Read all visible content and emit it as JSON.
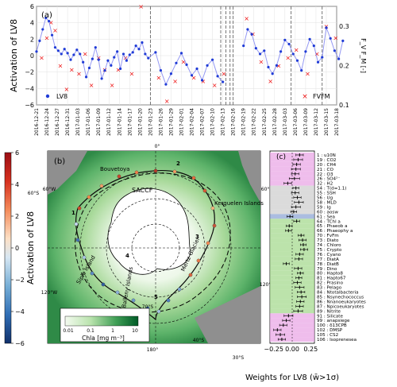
{
  "chart_data": [
    {
      "panel": "(a)",
      "type": "line",
      "ylabel": "Activation of LV8",
      "ylabel_right": "F_V F_M [-]",
      "ylim": [
        -6,
        6
      ],
      "yticks": [
        "6",
        "4",
        "2",
        "0",
        "−2",
        "−4",
        "−6"
      ],
      "ylim_right": [
        0.1,
        0.35
      ],
      "yticks_right": [
        "0.3",
        "0.2",
        "0.1"
      ],
      "legend_left": "LV8",
      "legend_right": "FVFM",
      "xticks": [
        "2016-12-21",
        "2016-12-24",
        "2016-12-27",
        "2016-12-31",
        "2017-01-03",
        "2017-01-06",
        "2017-01-09",
        "2017-01-12",
        "2017-01-14",
        "2017-01-17",
        "2017-01-20",
        "2017-01-23",
        "2017-01-26",
        "2017-01-29",
        "2017-02-01",
        "2017-02-04",
        "2017-02-07",
        "2017-02-10",
        "2017-02-13",
        "2017-02-16",
        "2017-02-19",
        "2017-02-22",
        "2017-02-25",
        "2017-02-28",
        "2017-03-03",
        "2017-03-06",
        "2017-03-09",
        "2017-03-12",
        "2017-03-15",
        "2017-03-18"
      ],
      "lv8_x": [
        0,
        0.3,
        0.6,
        0.9,
        1.2,
        1.5,
        1.8,
        2.1,
        2.4,
        2.7,
        3,
        3.3,
        3.6,
        3.9,
        4.2,
        4.5,
        4.8,
        5.1,
        5.4,
        5.7,
        6,
        6.3,
        6.6,
        6.9,
        7.2,
        7.5,
        7.8,
        8.1,
        8.4,
        8.7,
        9,
        9.3,
        9.6,
        9.9,
        10.2,
        10.5,
        10.8,
        11.5,
        12,
        12.5,
        13,
        13.5,
        14,
        14.5,
        15,
        15.5,
        16,
        16.5,
        17,
        17.5,
        18,
        20,
        20.4,
        20.8,
        21.2,
        21.6,
        22,
        22.4,
        22.8,
        23.2,
        23.6,
        24,
        24.4,
        24.8,
        25.2,
        25.6,
        26,
        26.4,
        26.8,
        27.2,
        27.6,
        28,
        28.4,
        28.8,
        29.2,
        29.6
      ],
      "lv8_y": [
        0.5,
        1.8,
        3.2,
        4.6,
        4.2,
        2.5,
        1.0,
        0.6,
        0.2,
        0.8,
        0.3,
        -0.5,
        0.1,
        0.7,
        0.2,
        -0.8,
        -2.6,
        -1.5,
        -0.4,
        1.0,
        -0.5,
        -2.8,
        -1.8,
        -0.6,
        -1.2,
        -0.2,
        0.5,
        -1.6,
        0.2,
        -0.6,
        0.1,
        0.4,
        1.2,
        0.8,
        1.6,
        0.2,
        -0.3,
        0.4,
        -1.8,
        -3.5,
        -2.2,
        -0.9,
        0.3,
        -1.1,
        -2.4,
        -1.6,
        -3.0,
        -1.2,
        -0.5,
        -2.5,
        -3.2,
        1.2,
        3.2,
        2.6,
        0.9,
        0.2,
        0.6,
        -1.4,
        -2.2,
        -1.2,
        0.5,
        1.9,
        1.4,
        0.2,
        -0.6,
        -1.8,
        0.5,
        2.0,
        1.2,
        -0.8,
        -0.2,
        3.4,
        2.1,
        0.6,
        -0.4,
        1.8
      ],
      "fvfm_x": [
        0.5,
        1.0,
        1.4,
        1.8,
        2.3,
        2.9,
        3.4,
        4.1,
        4.7,
        5.3,
        6.0,
        6.6,
        7.3,
        7.9,
        8.6,
        9.2,
        10.1,
        11.8,
        12.6,
        13.4,
        14.2,
        15.2,
        16.1,
        17.2,
        18.1,
        20.3,
        20.9,
        21.7,
        22.6,
        23.4,
        24.3,
        25.1,
        26.2,
        27.1,
        28.0,
        28.9
      ],
      "fvfm_y": [
        0.22,
        0.27,
        0.31,
        0.29,
        0.2,
        0.14,
        0.19,
        0.18,
        0.23,
        0.15,
        0.22,
        0.19,
        0.15,
        0.19,
        0.22,
        0.18,
        0.35,
        0.17,
        0.11,
        0.16,
        0.21,
        0.17,
        0.16,
        0.15,
        0.18,
        0.32,
        0.28,
        0.21,
        0.16,
        0.2,
        0.22,
        0.24,
        0.18,
        0.23,
        0.3,
        0.27
      ],
      "vlines_x": [
        11.0,
        17.8,
        18.3,
        18.7,
        19.0,
        24.6,
        27.6
      ]
    },
    {
      "panel": "(b)",
      "type": "heatmap",
      "colorbar_label": "Activation of LV8",
      "colorbar_ticks": [
        "6",
        "4",
        "2",
        "0",
        "−2",
        "−4",
        "−6"
      ],
      "chla_label": "Chla [mg m⁻³]",
      "chla_ticks": [
        "0.01",
        "0.1",
        "1",
        "10"
      ],
      "map_labels": [
        "SACCF",
        "Bouvetoya",
        "Kerguelen Islands",
        "Siple Island",
        "Balleny Islands",
        "Mertz Glacier"
      ],
      "lat_labels": [
        "60°S",
        "70°S",
        "80°S",
        "40°S"
      ],
      "lon_labels": [
        "0°",
        "60°E",
        "120°E",
        "180°",
        "120°W",
        "60°W",
        "30°S"
      ],
      "leg_numbers": [
        "1",
        "2",
        "3",
        "4",
        "5"
      ]
    },
    {
      "panel": "(c)",
      "type": "scatter",
      "xlabel": "Weights for LV8 (w̄>1σ)",
      "xlim": [
        -0.3,
        0.3
      ],
      "xticks": [
        "−0.25",
        "0.00",
        "0.25"
      ],
      "variables": [
        "1 : u10N",
        "19 : CO2",
        "20 : CH4",
        "21 : CO",
        "22 : O3",
        "26 : SO4²⁻",
        "32 : H2",
        "54 : T(d=1.1)",
        "55 : SSH",
        "56 : Ug",
        "58 : MLD",
        "59 : Ig",
        "60 : aosw",
        "61 : Sea",
        "64 : TChl a",
        "65 : Phaeob a",
        "66 : Phaeophy a",
        "70 : FvFm",
        "73 : Diato",
        "74 : Chloro",
        "75 : Crypto",
        "76 : Cyano",
        "77 : DiatA",
        "78 : DiatB",
        "79 : Dino",
        "80 : Hapto8",
        "81 : Hapto67",
        "82 : Prasino",
        "83 : Pelago",
        "84 : Ntotalbacteria",
        "85 : Nsynechococcus",
        "86 : Nnanoeukaryotes",
        "87 : Npicoeukaryotes",
        "89 : Nitrite",
        "91 : Silicate",
        "99 : anapsiege",
        "100 : δ13CPB",
        "102 : DMSP",
        "105 : CS2",
        "106 : Isoprenesea"
      ],
      "weights": [
        0.1,
        0.08,
        0.06,
        0.05,
        0.04,
        0.03,
        -0.06,
        0.05,
        0.04,
        0.07,
        0.09,
        0.05,
        0.02,
        -0.03,
        0.06,
        -0.04,
        -0.05,
        0.12,
        0.14,
        0.15,
        0.16,
        0.1,
        0.09,
        -0.08,
        0.08,
        0.11,
        0.09,
        0.07,
        0.1,
        0.12,
        0.13,
        0.11,
        0.1,
        0.08,
        -0.05,
        -0.08,
        -0.12,
        -0.2,
        -0.16,
        -0.14
      ],
      "errors": [
        0.05,
        0.06,
        0.05,
        0.06,
        0.05,
        0.07,
        0.05,
        0.04,
        0.05,
        0.05,
        0.06,
        0.06,
        0.04,
        0.04,
        0.04,
        0.04,
        0.04,
        0.04,
        0.05,
        0.04,
        0.05,
        0.05,
        0.05,
        0.04,
        0.05,
        0.04,
        0.04,
        0.05,
        0.06,
        0.05,
        0.06,
        0.05,
        0.05,
        0.06,
        0.06,
        0.05,
        0.05,
        0.05,
        0.06,
        0.05
      ],
      "groups": [
        "a",
        "a",
        "a",
        "a",
        "a",
        "a",
        "a",
        "g",
        "g",
        "g",
        "g",
        "g",
        "g",
        "b",
        "gr",
        "gr",
        "gr",
        "gr",
        "gr",
        "gr",
        "gr",
        "gr",
        "gr",
        "gr",
        "gr",
        "gr",
        "gr",
        "gr",
        "gr",
        "gr",
        "gr",
        "gr",
        "gr",
        "gr",
        "a",
        "a",
        "a",
        "a",
        "a",
        "a"
      ],
      "group_colors": {
        "a": "#e9a7e6",
        "g": "#cfcfcf",
        "b": "#8fa7d6",
        "gr": "#a6d98f"
      }
    }
  ]
}
